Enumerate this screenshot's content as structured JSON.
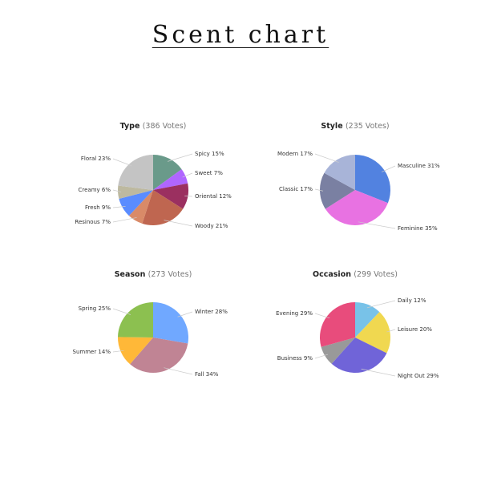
{
  "title": "Scent chart",
  "chart_data": [
    {
      "type": "pie",
      "title": "Type",
      "votes": "(386 Votes)",
      "labels": [
        "Spicy",
        "Sweet",
        "Oriental",
        "Woody",
        "Resinous",
        "Fresh",
        "Creamy",
        "Floral"
      ],
      "values": [
        15,
        7,
        12,
        21,
        7,
        9,
        6,
        23
      ],
      "colors": [
        "#6a9a8a",
        "#b066ff",
        "#9b3060",
        "#bf6650",
        "#d98a68",
        "#5a8cff",
        "#bdb9a0",
        "#c4c4c4"
      ]
    },
    {
      "type": "pie",
      "title": "Style",
      "votes": "(235 Votes)",
      "labels": [
        "Masculine",
        "Feminine",
        "Classic",
        "Modern"
      ],
      "values": [
        31,
        35,
        17,
        17
      ],
      "colors": [
        "#5282e0",
        "#e872e2",
        "#7a80a2",
        "#a8b4d8"
      ]
    },
    {
      "type": "pie",
      "title": "Season",
      "votes": "(273 Votes)",
      "labels": [
        "Winter",
        "Fall",
        "Summer",
        "Spring"
      ],
      "values": [
        28,
        34,
        14,
        25
      ],
      "colors": [
        "#70a8ff",
        "#c08494",
        "#ffb838",
        "#8cc050"
      ]
    },
    {
      "type": "pie",
      "title": "Occasion",
      "votes": "(299 Votes)",
      "labels": [
        "Daily",
        "Leisure",
        "Night Out",
        "Business",
        "Evening"
      ],
      "values": [
        12,
        20,
        29,
        9,
        29
      ],
      "colors": [
        "#78c2e8",
        "#f0d850",
        "#7064d8",
        "#999999",
        "#e84c7c"
      ]
    }
  ]
}
